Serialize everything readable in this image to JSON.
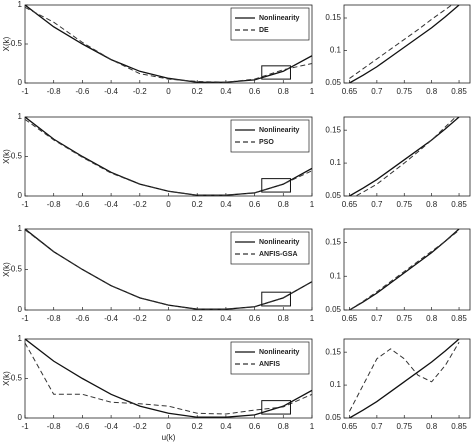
{
  "chart_data": [
    {
      "type": "line",
      "ylabel": "X(k)",
      "xlim": [
        -1,
        1
      ],
      "ylim": [
        0,
        1
      ],
      "xticks": [
        -1,
        -0.8,
        -0.6,
        -0.4,
        -0.2,
        0,
        0.2,
        0.4,
        0.6,
        0.8,
        1
      ],
      "yticks": [
        0,
        0.5,
        1
      ],
      "legend": "upper right",
      "x": [
        -1,
        -0.8,
        -0.6,
        -0.4,
        -0.2,
        0,
        0.2,
        0.4,
        0.6,
        0.8,
        1
      ],
      "series": [
        {
          "name": "Nonlinearity",
          "color": "#111111",
          "style": "solid",
          "values": [
            1.0,
            0.72,
            0.5,
            0.3,
            0.15,
            0.06,
            0.01,
            0.01,
            0.04,
            0.15,
            0.35
          ]
        },
        {
          "name": "DE",
          "color": "#333333",
          "style": "dashed",
          "values": [
            0.97,
            0.78,
            0.52,
            0.3,
            0.12,
            0.05,
            0.02,
            0.01,
            0.05,
            0.17,
            0.25
          ]
        }
      ]
    },
    {
      "type": "line",
      "xlim": [
        0.64,
        0.87
      ],
      "ylim": [
        0.05,
        0.17
      ],
      "xticks": [
        0.65,
        0.7,
        0.75,
        0.8,
        0.85
      ],
      "yticks": [
        0.05,
        0.1,
        0.15
      ],
      "x": [
        0.65,
        0.675,
        0.7,
        0.725,
        0.75,
        0.775,
        0.8,
        0.825,
        0.85
      ],
      "series": [
        {
          "name": "Nonlinearity",
          "color": "#111111",
          "style": "solid",
          "values": [
            0.05,
            0.062,
            0.075,
            0.09,
            0.105,
            0.12,
            0.135,
            0.152,
            0.17
          ]
        },
        {
          "name": "DE",
          "color": "#333333",
          "style": "dashed",
          "values": [
            0.057,
            0.072,
            0.087,
            0.102,
            0.117,
            0.132,
            0.148,
            0.163,
            0.178
          ]
        }
      ]
    },
    {
      "type": "line",
      "ylabel": "X(k)",
      "xlim": [
        -1,
        1
      ],
      "ylim": [
        0,
        1
      ],
      "xticks": [
        -1,
        -0.8,
        -0.6,
        -0.4,
        -0.2,
        0,
        0.2,
        0.4,
        0.6,
        0.8,
        1
      ],
      "yticks": [
        0,
        0.5,
        1
      ],
      "legend": "upper right",
      "x": [
        -1,
        -0.8,
        -0.6,
        -0.4,
        -0.2,
        0,
        0.2,
        0.4,
        0.6,
        0.8,
        1
      ],
      "series": [
        {
          "name": "Nonlinearity",
          "color": "#111111",
          "style": "solid",
          "values": [
            1.0,
            0.72,
            0.5,
            0.3,
            0.15,
            0.06,
            0.01,
            0.01,
            0.04,
            0.15,
            0.35
          ]
        },
        {
          "name": "PSO",
          "color": "#333333",
          "style": "dashed",
          "values": [
            0.97,
            0.71,
            0.49,
            0.29,
            0.15,
            0.06,
            0.01,
            0.01,
            0.04,
            0.15,
            0.32
          ]
        }
      ]
    },
    {
      "type": "line",
      "xlim": [
        0.64,
        0.87
      ],
      "ylim": [
        0.05,
        0.17
      ],
      "xticks": [
        0.65,
        0.7,
        0.75,
        0.8,
        0.85
      ],
      "yticks": [
        0.05,
        0.1,
        0.15
      ],
      "x": [
        0.65,
        0.675,
        0.7,
        0.725,
        0.75,
        0.775,
        0.8,
        0.825,
        0.85
      ],
      "series": [
        {
          "name": "Nonlinearity",
          "color": "#111111",
          "style": "solid",
          "values": [
            0.05,
            0.062,
            0.075,
            0.09,
            0.105,
            0.12,
            0.135,
            0.152,
            0.17
          ]
        },
        {
          "name": "PSO",
          "color": "#333333",
          "style": "dashed",
          "values": [
            0.045,
            0.056,
            0.068,
            0.084,
            0.1,
            0.117,
            0.135,
            0.155,
            0.175
          ]
        }
      ]
    },
    {
      "type": "line",
      "ylabel": "X(k)",
      "xlim": [
        -1,
        1
      ],
      "ylim": [
        0,
        1
      ],
      "xticks": [
        -1,
        -0.8,
        -0.6,
        -0.4,
        -0.2,
        0,
        0.2,
        0.4,
        0.6,
        0.8,
        1
      ],
      "yticks": [
        0,
        0.5,
        1
      ],
      "legend": "upper right",
      "x": [
        -1,
        -0.8,
        -0.6,
        -0.4,
        -0.2,
        0,
        0.2,
        0.4,
        0.6,
        0.8,
        1
      ],
      "series": [
        {
          "name": "Nonlinearity",
          "color": "#111111",
          "style": "solid",
          "values": [
            1.0,
            0.72,
            0.5,
            0.3,
            0.15,
            0.06,
            0.01,
            0.01,
            0.04,
            0.15,
            0.35
          ]
        },
        {
          "name": "ANFIS-GSA",
          "color": "#333333",
          "style": "dashed",
          "values": [
            0.99,
            0.72,
            0.5,
            0.3,
            0.15,
            0.06,
            0.01,
            0.01,
            0.04,
            0.15,
            0.35
          ]
        }
      ]
    },
    {
      "type": "line",
      "xlim": [
        0.64,
        0.87
      ],
      "ylim": [
        0.05,
        0.17
      ],
      "xticks": [
        0.65,
        0.7,
        0.75,
        0.8,
        0.85
      ],
      "yticks": [
        0.05,
        0.1,
        0.15
      ],
      "x": [
        0.65,
        0.675,
        0.7,
        0.725,
        0.75,
        0.775,
        0.8,
        0.825,
        0.85
      ],
      "series": [
        {
          "name": "Nonlinearity",
          "color": "#111111",
          "style": "solid",
          "values": [
            0.05,
            0.062,
            0.075,
            0.09,
            0.105,
            0.12,
            0.135,
            0.152,
            0.17
          ]
        },
        {
          "name": "ANFIS-GSA",
          "color": "#333333",
          "style": "dashed",
          "values": [
            0.05,
            0.063,
            0.077,
            0.092,
            0.107,
            0.122,
            0.137,
            0.152,
            0.168
          ]
        }
      ]
    },
    {
      "type": "line",
      "ylabel": "X(k)",
      "xlabel": "u(k)",
      "xlim": [
        -1,
        1
      ],
      "ylim": [
        0,
        1
      ],
      "xticks": [
        -1,
        -0.8,
        -0.6,
        -0.4,
        -0.2,
        0,
        0.2,
        0.4,
        0.6,
        0.8,
        1
      ],
      "yticks": [
        0,
        0.5,
        1
      ],
      "legend": "upper right",
      "x": [
        -1,
        -0.8,
        -0.6,
        -0.4,
        -0.2,
        0,
        0.2,
        0.4,
        0.6,
        0.8,
        1
      ],
      "series": [
        {
          "name": "Nonlinearity",
          "color": "#111111",
          "style": "solid",
          "values": [
            1.0,
            0.72,
            0.5,
            0.3,
            0.15,
            0.06,
            0.01,
            0.01,
            0.04,
            0.15,
            0.35
          ]
        },
        {
          "name": "ANFIS",
          "color": "#333333",
          "style": "dashed",
          "values": [
            0.95,
            0.3,
            0.3,
            0.2,
            0.18,
            0.15,
            0.06,
            0.05,
            0.1,
            0.14,
            0.3
          ]
        }
      ]
    },
    {
      "type": "line",
      "xlim": [
        0.64,
        0.87
      ],
      "ylim": [
        0.05,
        0.17
      ],
      "xticks": [
        0.65,
        0.7,
        0.75,
        0.8,
        0.85
      ],
      "yticks": [
        0.05,
        0.1,
        0.15
      ],
      "x": [
        0.65,
        0.675,
        0.7,
        0.725,
        0.75,
        0.775,
        0.8,
        0.825,
        0.85
      ],
      "series": [
        {
          "name": "Nonlinearity",
          "color": "#111111",
          "style": "solid",
          "values": [
            0.05,
            0.062,
            0.075,
            0.09,
            0.105,
            0.12,
            0.135,
            0.152,
            0.17
          ]
        },
        {
          "name": "ANFIS",
          "color": "#333333",
          "style": "dashed",
          "values": [
            0.06,
            0.1,
            0.14,
            0.155,
            0.14,
            0.115,
            0.105,
            0.13,
            0.165
          ]
        }
      ]
    }
  ]
}
